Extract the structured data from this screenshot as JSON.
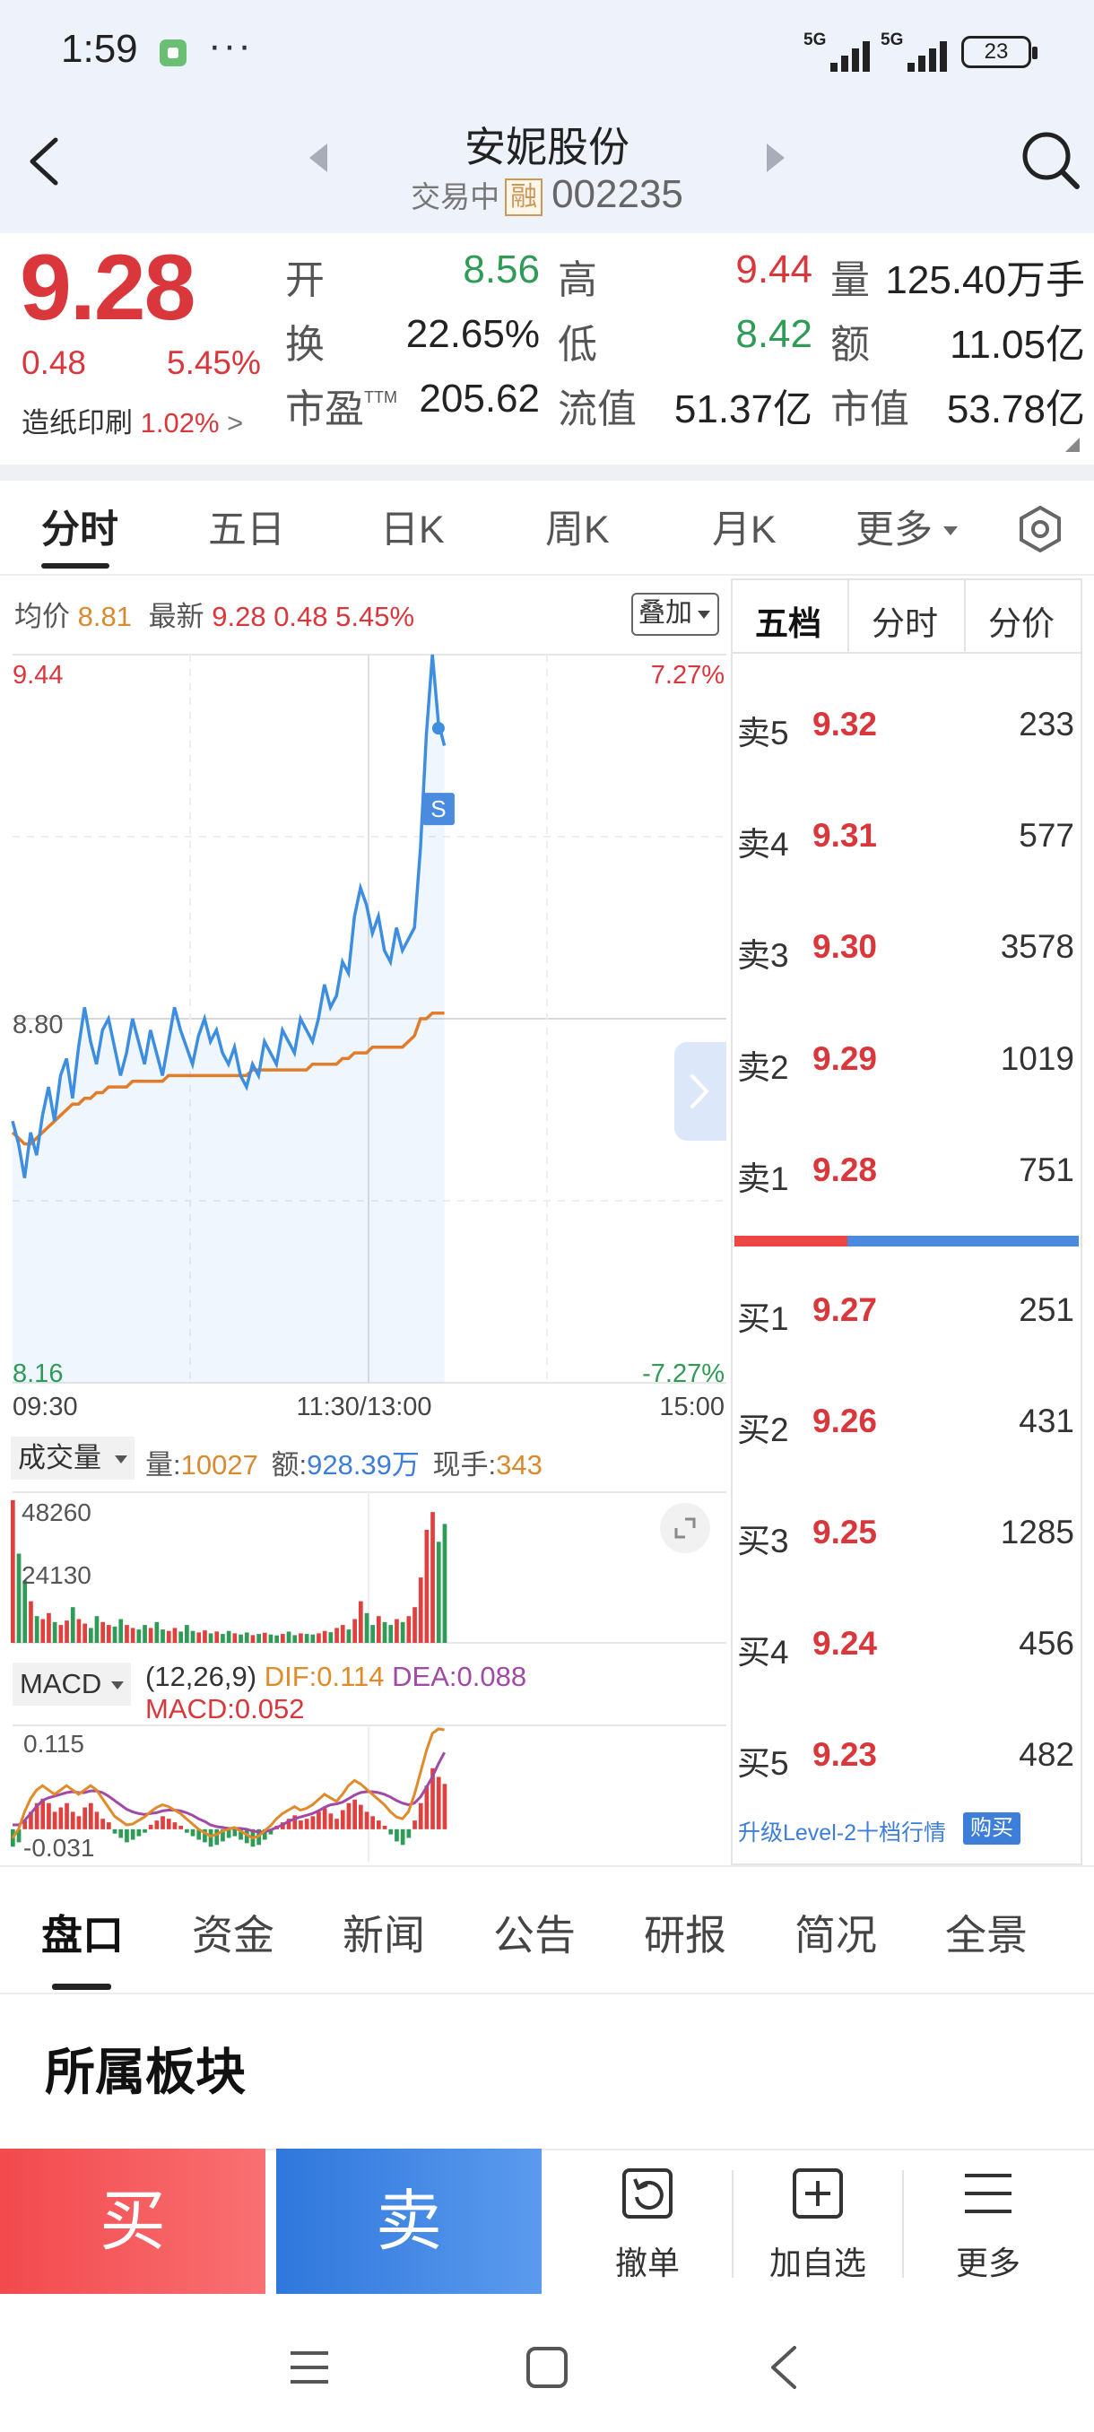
{
  "status_bar": {
    "time": "1:59",
    "dots": "···",
    "sig1": "5G",
    "sig2": "5G",
    "battery": "23"
  },
  "header": {
    "stock_name": "安妮股份",
    "trade_status": "交易中",
    "margin_badge": "融",
    "stock_code": "002235"
  },
  "quote": {
    "price": "9.28",
    "change": "0.48",
    "change_pct": "5.45%",
    "sector": "造纸印刷",
    "sector_pct": "1.02%",
    "sector_arrow": ">",
    "fields": [
      {
        "label": "开",
        "value": "8.56"
      },
      {
        "label": "高",
        "value": "9.44"
      },
      {
        "label": "量",
        "value": "125.40万手"
      },
      {
        "label": "换",
        "value": "22.65%"
      },
      {
        "label": "低",
        "value": "8.42"
      },
      {
        "label": "额",
        "value": "11.05亿"
      },
      {
        "label": "市盈",
        "label_sup": "TTM",
        "value": "205.62"
      },
      {
        "label": "流值",
        "value": "51.37亿"
      },
      {
        "label": "市值",
        "value": "53.78亿"
      }
    ]
  },
  "chart_tabs": [
    "分时",
    "五日",
    "日K",
    "周K",
    "月K",
    "更多"
  ],
  "info_line": {
    "avg_label": "均价",
    "avg_value": "8.81",
    "last_label": "最新",
    "last_value": "9.28",
    "last_change": "0.48",
    "last_pct": "5.45%",
    "overlay_btn": "叠加"
  },
  "chart_data": {
    "type": "line",
    "title": "",
    "x_ticks": [
      "09:30",
      "11:30/13:00",
      "15:00"
    ],
    "y_ticks": [
      "9.44",
      "8.80",
      "8.16"
    ],
    "y_right_ticks": [
      "7.27%",
      "-7.27%"
    ],
    "ylim": [
      8.16,
      9.44
    ],
    "marker_label": "S",
    "series": [
      {
        "color": "#3d8ee0",
        "values": [
          8.62,
          8.58,
          8.52,
          8.6,
          8.56,
          8.63,
          8.68,
          8.62,
          8.7,
          8.73,
          8.66,
          8.75,
          8.82,
          8.76,
          8.72,
          8.78,
          8.8,
          8.75,
          8.7,
          8.74,
          8.8,
          8.76,
          8.72,
          8.78,
          8.74,
          8.7,
          8.76,
          8.82,
          8.78,
          8.75,
          8.72,
          8.77,
          8.8,
          8.76,
          8.78,
          8.74,
          8.72,
          8.75,
          8.7,
          8.68,
          8.72,
          8.7,
          8.76,
          8.74,
          8.72,
          8.78,
          8.76,
          8.74,
          8.8,
          8.78,
          8.76,
          8.8,
          8.86,
          8.82,
          8.84,
          8.9,
          8.88,
          8.98,
          9.03,
          9.0,
          8.95,
          8.98,
          8.92,
          8.9,
          8.96,
          8.92,
          8.94,
          8.96,
          9.1,
          9.3,
          9.44,
          9.32,
          9.28
        ]
      },
      {
        "color": "#e07c2a",
        "values": [
          8.6,
          8.59,
          8.58,
          8.58,
          8.59,
          8.6,
          8.61,
          8.62,
          8.63,
          8.64,
          8.65,
          8.65,
          8.66,
          8.66,
          8.67,
          8.67,
          8.68,
          8.68,
          8.68,
          8.68,
          8.69,
          8.69,
          8.69,
          8.69,
          8.69,
          8.69,
          8.7,
          8.7,
          8.7,
          8.7,
          8.7,
          8.7,
          8.7,
          8.7,
          8.7,
          8.7,
          8.7,
          8.7,
          8.7,
          8.7,
          8.71,
          8.71,
          8.71,
          8.71,
          8.71,
          8.71,
          8.71,
          8.71,
          8.71,
          8.71,
          8.72,
          8.72,
          8.72,
          8.72,
          8.72,
          8.73,
          8.73,
          8.74,
          8.74,
          8.74,
          8.75,
          8.75,
          8.75,
          8.75,
          8.75,
          8.75,
          8.76,
          8.77,
          8.8,
          8.8,
          8.81,
          8.81,
          8.81
        ]
      }
    ]
  },
  "volume": {
    "label": "成交量",
    "qty_label": "量:",
    "qty": "10027",
    "amt_label": "额:",
    "amt": "928.39万",
    "hand_label": "现手:",
    "hand": "343",
    "y_ticks": [
      "48260",
      "24130"
    ],
    "max": 48260,
    "values": [
      48000,
      30000,
      21000,
      14000,
      9000,
      8000,
      10000,
      7000,
      6000,
      7500,
      12000,
      8000,
      6500,
      5000,
      9000,
      7000,
      6000,
      5500,
      8000,
      6000,
      5000,
      4500,
      6000,
      5000,
      7000,
      4500,
      4000,
      5000,
      3800,
      6000,
      4000,
      3500,
      4200,
      3200,
      3800,
      3000,
      4000,
      3200,
      2800,
      3500,
      2600,
      3000,
      3400,
      2800,
      2500,
      3000,
      3800,
      2600,
      3200,
      3000,
      2800,
      3200,
      4000,
      3600,
      5000,
      6000,
      4500,
      8000,
      14000,
      10000,
      6000,
      9000,
      7000,
      6000,
      8000,
      7000,
      9000,
      12000,
      22000,
      38000,
      44000,
      34000,
      40000
    ]
  },
  "macd": {
    "label": "MACD",
    "params": "(12,26,9)",
    "dif": "DIF:0.114",
    "dea": "DEA:0.088",
    "macd": "MACD:0.052",
    "y_ticks": [
      "0.115",
      "-0.031"
    ],
    "hist": [
      -0.02,
      -0.015,
      0.01,
      0.02,
      0.03,
      0.035,
      0.03,
      0.02,
      0.025,
      0.03,
      0.02,
      0.015,
      0.025,
      0.03,
      0.02,
      0.012,
      0.008,
      -0.005,
      -0.01,
      -0.015,
      -0.012,
      -0.008,
      -0.004,
      0.005,
      0.01,
      0.015,
      0.012,
      0.008,
      0.004,
      -0.004,
      -0.008,
      -0.012,
      -0.015,
      -0.02,
      -0.018,
      -0.014,
      -0.01,
      -0.008,
      -0.012,
      -0.016,
      -0.02,
      -0.018,
      -0.012,
      -0.006,
      0.004,
      0.008,
      0.012,
      0.016,
      0.01,
      0.012,
      0.015,
      0.02,
      0.024,
      0.018,
      0.012,
      0.022,
      0.03,
      0.034,
      0.028,
      0.02,
      0.015,
      0.01,
      0.004,
      -0.006,
      -0.014,
      -0.018,
      -0.01,
      0.01,
      0.03,
      0.05,
      0.07,
      0.06,
      0.052
    ],
    "dif_series": [
      -0.01,
      0.0,
      0.02,
      0.035,
      0.045,
      0.05,
      0.045,
      0.04,
      0.045,
      0.05,
      0.045,
      0.04,
      0.045,
      0.05,
      0.045,
      0.035,
      0.025,
      0.015,
      0.01,
      0.005,
      0.006,
      0.01,
      0.014,
      0.02,
      0.025,
      0.028,
      0.026,
      0.022,
      0.018,
      0.012,
      0.006,
      0.0,
      -0.004,
      -0.008,
      -0.006,
      -0.002,
      0.0,
      0.002,
      -0.002,
      -0.006,
      -0.01,
      -0.008,
      -0.002,
      0.004,
      0.012,
      0.018,
      0.022,
      0.026,
      0.022,
      0.024,
      0.028,
      0.034,
      0.04,
      0.036,
      0.032,
      0.04,
      0.05,
      0.056,
      0.052,
      0.046,
      0.04,
      0.034,
      0.028,
      0.02,
      0.014,
      0.012,
      0.02,
      0.04,
      0.065,
      0.09,
      0.11,
      0.115,
      0.114
    ],
    "dea_series": [
      0.005,
      0.005,
      0.01,
      0.018,
      0.026,
      0.033,
      0.036,
      0.038,
      0.04,
      0.042,
      0.043,
      0.042,
      0.042,
      0.044,
      0.044,
      0.042,
      0.038,
      0.033,
      0.028,
      0.023,
      0.02,
      0.018,
      0.017,
      0.018,
      0.019,
      0.021,
      0.022,
      0.022,
      0.021,
      0.019,
      0.016,
      0.012,
      0.009,
      0.005,
      0.003,
      0.002,
      0.001,
      0.001,
      0.001,
      0.0,
      -0.002,
      -0.003,
      -0.003,
      -0.001,
      0.002,
      0.005,
      0.009,
      0.012,
      0.014,
      0.016,
      0.018,
      0.021,
      0.025,
      0.028,
      0.029,
      0.031,
      0.035,
      0.039,
      0.042,
      0.043,
      0.043,
      0.042,
      0.04,
      0.037,
      0.033,
      0.03,
      0.028,
      0.03,
      0.037,
      0.048,
      0.06,
      0.075,
      0.088
    ]
  },
  "order_book": {
    "tabs": [
      "五档",
      "分时",
      "分价"
    ],
    "asks": [
      {
        "label": "卖5",
        "price": "9.32",
        "vol": "233"
      },
      {
        "label": "卖4",
        "price": "9.31",
        "vol": "577"
      },
      {
        "label": "卖3",
        "price": "9.30",
        "vol": "3578"
      },
      {
        "label": "卖2",
        "price": "9.29",
        "vol": "1019"
      },
      {
        "label": "卖1",
        "price": "9.28",
        "vol": "751"
      }
    ],
    "bids": [
      {
        "label": "买1",
        "price": "9.27",
        "vol": "251"
      },
      {
        "label": "买2",
        "price": "9.26",
        "vol": "431"
      },
      {
        "label": "买3",
        "price": "9.25",
        "vol": "1285"
      },
      {
        "label": "买4",
        "price": "9.24",
        "vol": "456"
      },
      {
        "label": "买5",
        "price": "9.23",
        "vol": "482"
      }
    ],
    "upgrade_text": "升级Level-2十档行情",
    "buy_badge": "购买"
  },
  "info_tabs": [
    "盘口",
    "资金",
    "新闻",
    "公告",
    "研报",
    "简况",
    "全景"
  ],
  "section_title": "所属板块",
  "actions": {
    "buy": "买",
    "sell": "卖",
    "cancel": "撤单",
    "add_watch": "加自选",
    "more": "更多"
  },
  "colors": {
    "up": "#d9373b",
    "down": "#2e9b57",
    "price_line": "#3d8ee0",
    "avg_line": "#e07c2a"
  }
}
